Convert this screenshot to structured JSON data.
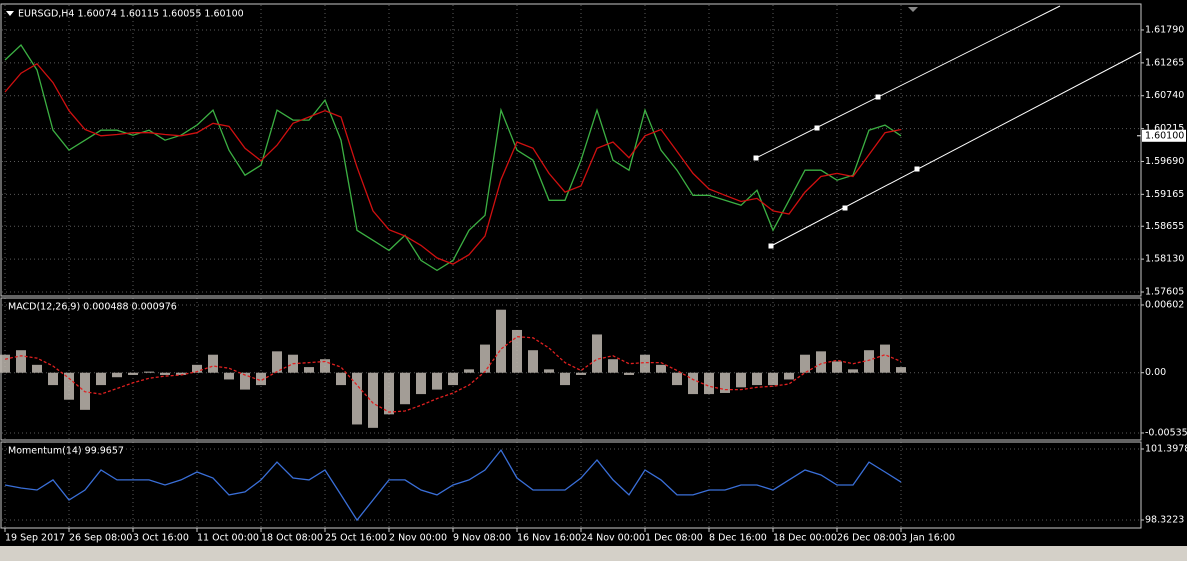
{
  "chart_data": [
    {
      "type": "line",
      "title": "EURSGD,H4  1.60074 1.60115 1.60055 1.60100",
      "x": [
        0,
        1,
        2,
        3,
        4,
        5,
        6,
        7,
        8,
        9,
        10,
        11,
        12,
        13,
        14,
        15,
        16,
        17,
        18,
        19,
        20,
        21,
        22,
        23,
        24,
        25,
        26,
        27,
        28,
        29,
        30,
        31,
        32,
        33,
        34,
        35,
        36,
        37,
        38,
        39,
        40,
        41,
        42,
        43,
        44,
        45,
        46,
        47,
        48,
        49,
        50,
        51,
        52,
        53,
        54,
        55,
        56
      ],
      "series": [
        {
          "color": "#3cb043",
          "values": [
            1.6131,
            1.6155,
            1.6115,
            1.6019,
            1.5987,
            1.6003,
            1.6019,
            1.6019,
            1.6011,
            1.6019,
            1.6003,
            1.6011,
            1.6027,
            1.6051,
            1.5987,
            1.5947,
            1.5963,
            1.6051,
            1.6035,
            1.6035,
            1.6067,
            1.6003,
            1.5859,
            1.5843,
            1.5827,
            1.5851,
            1.5811,
            1.5795,
            1.5811,
            1.5859,
            1.5883,
            1.6051,
            1.5987,
            1.5971,
            1.5907,
            1.5907,
            1.5971,
            1.6051,
            1.5971,
            1.5955,
            1.6051,
            1.5987,
            1.5955,
            1.5915,
            1.5915,
            1.5907,
            1.5899,
            1.5923,
            1.5859,
            1.5907,
            1.5955,
            1.5955,
            1.5939,
            1.5947,
            1.6019,
            1.6027,
            1.601
          ]
        },
        {
          "color": "#d01010",
          "values": [
            1.608,
            1.611,
            1.6125,
            1.6095,
            1.605,
            1.602,
            1.601,
            1.6012,
            1.6015,
            1.6015,
            1.6012,
            1.601,
            1.6015,
            1.603,
            1.6025,
            1.599,
            1.597,
            1.5995,
            1.603,
            1.604,
            1.605,
            1.604,
            1.596,
            1.589,
            1.586,
            1.585,
            1.5835,
            1.5815,
            1.5805,
            1.582,
            1.585,
            1.594,
            1.6,
            1.599,
            1.595,
            1.592,
            1.593,
            1.599,
            1.6,
            1.5975,
            1.601,
            1.602,
            1.5985,
            1.595,
            1.5925,
            1.5915,
            1.5905,
            1.591,
            1.589,
            1.5885,
            1.592,
            1.5945,
            1.595,
            1.5945,
            1.598,
            1.6015,
            1.602
          ]
        }
      ],
      "xlim": [
        0,
        71
      ],
      "ylim": [
        1.57557,
        1.62189
      ],
      "yticks": [
        {
          "value": 1.6179,
          "label": "1.61790"
        },
        1.61265,
        {
          "value": 1.6074,
          "label": "1.60740"
        },
        1.60215,
        {
          "value": 1.5969,
          "label": "1.59690"
        },
        1.59165,
        1.58655,
        {
          "value": 1.5813,
          "label": "1.58130"
        },
        1.57605
      ],
      "last_price": {
        "value": 1.601,
        "label": "1.60100"
      },
      "grid": true
    },
    {
      "type": "bar",
      "title": "MACD(12,26,9) 0.000488 0.000976",
      "x": [
        0,
        1,
        2,
        3,
        4,
        5,
        6,
        7,
        8,
        9,
        10,
        11,
        12,
        13,
        14,
        15,
        16,
        17,
        18,
        19,
        20,
        21,
        22,
        23,
        24,
        25,
        26,
        27,
        28,
        29,
        30,
        31,
        32,
        33,
        34,
        35,
        36,
        37,
        38,
        39,
        40,
        41,
        42,
        43,
        44,
        45,
        46,
        47,
        48,
        49,
        50,
        51,
        52,
        53,
        54,
        55,
        56
      ],
      "series": [
        {
          "color": "#c0b8b0",
          "values": [
            0.0016,
            0.002,
            0.0007,
            -0.0011,
            -0.0024,
            -0.0033,
            -0.0011,
            -0.0004,
            -0.0002,
            0.0001,
            -0.0002,
            -0.0002,
            0.0007,
            0.0016,
            -0.0006,
            -0.0015,
            -0.0011,
            0.0019,
            0.0016,
            0.0005,
            0.0012,
            -0.0011,
            -0.0046,
            -0.0049,
            -0.0037,
            -0.0028,
            -0.0019,
            -0.0015,
            -0.0011,
            0.0003,
            0.0025,
            0.0056,
            0.0038,
            0.002,
            0.0003,
            -0.0011,
            -0.0002,
            0.0034,
            0.0012,
            -0.0002,
            0.0016,
            0.0007,
            -0.0011,
            -0.0019,
            -0.0019,
            -0.0018,
            -0.0013,
            -0.0011,
            -0.0011,
            -0.0006,
            0.0016,
            0.0019,
            0.001,
            0.0003,
            0.002,
            0.0025,
            0.0005
          ]
        },
        {
          "color": "#e02020",
          "style": "dashed",
          "values": [
            0.0012,
            0.0015,
            0.0013,
            0.0006,
            -0.0005,
            -0.0017,
            -0.0019,
            -0.0014,
            -0.0009,
            -0.0005,
            -0.0003,
            -0.0002,
            0.0001,
            0.0006,
            0.0004,
            -0.0002,
            -0.0007,
            0.0001,
            0.0008,
            0.0009,
            0.001,
            0.0005,
            -0.0011,
            -0.0027,
            -0.0035,
            -0.0034,
            -0.0029,
            -0.0023,
            -0.0018,
            -0.0011,
            0.0001,
            0.0021,
            0.0032,
            0.0031,
            0.0022,
            0.0009,
            0.0002,
            0.0012,
            0.0015,
            0.0008,
            0.0009,
            0.0009,
            0.0002,
            -0.0006,
            -0.0012,
            -0.0015,
            -0.0015,
            -0.0013,
            -0.0012,
            -0.001,
            0,
            0.0008,
            0.0011,
            0.0008,
            0.0011,
            0.0016,
            0.001
          ]
        }
      ],
      "xlim": [
        0,
        71
      ],
      "ylim": [
        -0.00598,
        0.00664
      ],
      "yticks": [
        0.00602,
        {
          "value": 0,
          "label": "0.00"
        },
        -0.005354
      ],
      "grid": true
    },
    {
      "type": "line",
      "title": "Momentum(14) 99.9657",
      "x": [
        0,
        1,
        2,
        3,
        4,
        5,
        6,
        7,
        8,
        9,
        10,
        11,
        12,
        13,
        14,
        15,
        16,
        17,
        18,
        19,
        20,
        21,
        22,
        23,
        24,
        25,
        26,
        27,
        28,
        29,
        30,
        31,
        32,
        33,
        34,
        35,
        36,
        37,
        38,
        39,
        40,
        41,
        42,
        43,
        44,
        45,
        46,
        47,
        48,
        49,
        50,
        51,
        52,
        53,
        54,
        55,
        56
      ],
      "series": [
        {
          "color": "#3a6fd8",
          "values": [
            99.84,
            99.71,
            99.62,
            100.06,
            99.19,
            99.62,
            100.49,
            100.06,
            100.06,
            100.06,
            99.84,
            100.06,
            100.4,
            100.14,
            99.41,
            99.54,
            100.06,
            100.83,
            100.14,
            100.06,
            100.49,
            99.41,
            98.32,
            99.19,
            100.06,
            100.06,
            99.62,
            99.41,
            99.84,
            100.06,
            100.49,
            101.35,
            100.14,
            99.62,
            99.62,
            99.62,
            100.14,
            100.92,
            100.06,
            99.41,
            100.49,
            100.06,
            99.41,
            99.41,
            99.62,
            99.62,
            99.84,
            99.84,
            99.62,
            100.06,
            100.49,
            100.27,
            99.84,
            99.84,
            100.83,
            100.4,
            99.9657
          ]
        }
      ],
      "xlim": [
        0,
        71
      ],
      "ylim": [
        97.976,
        101.701
      ],
      "yticks": [
        101.3978,
        98.3223
      ],
      "xticks": [
        {
          "value": 0,
          "label": "19 Sep 2017"
        },
        {
          "value": 4,
          "label": "26 Sep 08:00"
        },
        {
          "value": 8,
          "label": "3 Oct 16:00"
        },
        {
          "value": 12,
          "label": "11 Oct 00:00"
        },
        {
          "value": 16,
          "label": "18 Oct 08:00"
        },
        {
          "value": 20,
          "label": "25 Oct 16:00"
        },
        {
          "value": 24,
          "label": "2 Nov 00:00"
        },
        {
          "value": 28,
          "label": "9 Nov 08:00"
        },
        {
          "value": 32,
          "label": "16 Nov 16:00"
        },
        {
          "value": 36,
          "label": "24 Nov 00:00"
        },
        {
          "value": 40,
          "label": "1 Dec 08:00"
        },
        {
          "value": 44,
          "label": "8 Dec 16:00"
        },
        {
          "value": 48,
          "label": "18 Dec 00:00"
        },
        {
          "value": 52,
          "label": "26 Dec 08:00"
        },
        {
          "value": 56,
          "label": "3 Jan 16:00"
        }
      ],
      "grid": true
    }
  ]
}
